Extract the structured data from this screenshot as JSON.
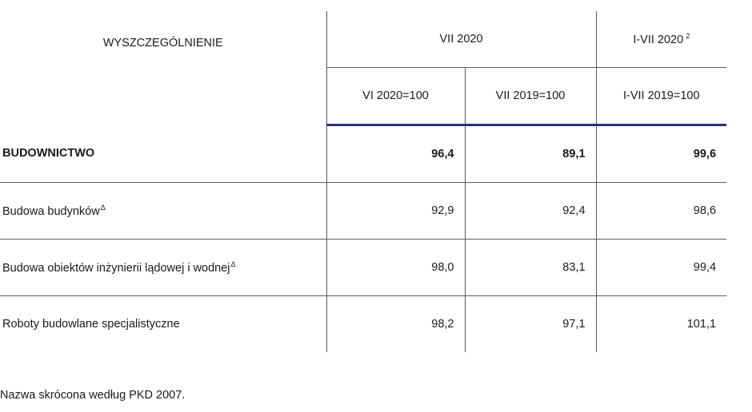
{
  "table": {
    "header_label": "WYSZCZEGÓLNIENIE",
    "group_1": "VII 2020",
    "group_2": "I-VII 2020",
    "group_2_note": "2",
    "col_a": "VI 2020=100",
    "col_b": "VII 2019=100",
    "col_c": "I-VII 2019=100",
    "rows": [
      {
        "label": "BUDOWNICTWO",
        "mark": "",
        "a": "96,4",
        "b": "89,1",
        "c": "99,6"
      },
      {
        "label": "Budowa budynków",
        "mark": "Δ",
        "a": "92,9",
        "b": "92,4",
        "c": "98,6"
      },
      {
        "label": "Budowa obiektów inżynierii lądowej i wodnej",
        "mark": "Δ",
        "a": "98,0",
        "b": "83,1",
        "c": "99,4"
      },
      {
        "label": "Roboty budowlane specjalistyczne",
        "mark": "",
        "a": "98,2",
        "b": "97,1",
        "c": "101,1"
      }
    ]
  },
  "footnote": "Nazwa skrócona według PKD 2007."
}
